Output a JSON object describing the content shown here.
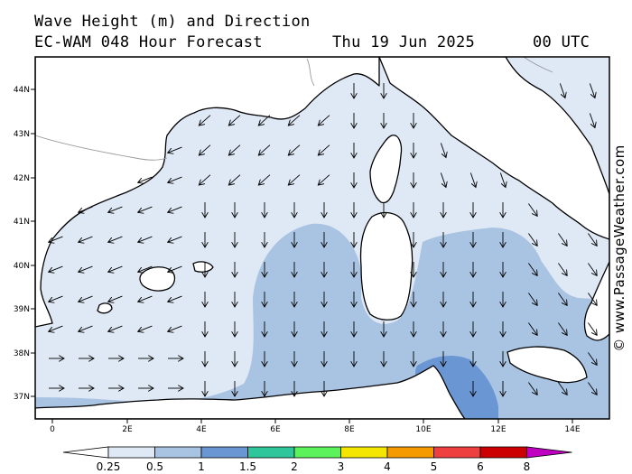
{
  "header": {
    "title": "Wave Height (m) and Direction",
    "model": "EC-WAM 048 Hour Forecast",
    "date": "Thu 19 Jun 2025",
    "time": "00 UTC"
  },
  "credit": "© www.PassageWeather.com",
  "map": {
    "lon_labels": [
      "0",
      "2E",
      "4E",
      "6E",
      "8E",
      "10E",
      "12E",
      "14E"
    ],
    "lat_labels": [
      "44N",
      "43N",
      "42N",
      "41N",
      "40N",
      "39N",
      "38N",
      "37N"
    ]
  },
  "colorbar": {
    "labels": [
      "0.25",
      "0.5",
      "1",
      "1.5",
      "2",
      "3",
      "4",
      "5",
      "6",
      "8"
    ],
    "colors": [
      "#ffffff",
      "#dfe8f5",
      "#a9c3e2",
      "#6a97d3",
      "#2ec69a",
      "#5cf25c",
      "#f4e600",
      "#f59a00",
      "#ef4040",
      "#cc0000",
      "#c000c0"
    ]
  },
  "colors": {
    "land": "#ffffff",
    "sea_calm": "#dfe8f5",
    "sea_mid": "#a9c3e2",
    "sea_high": "#6a97d3",
    "coast": "#000000",
    "border": "#9a9a9a"
  }
}
